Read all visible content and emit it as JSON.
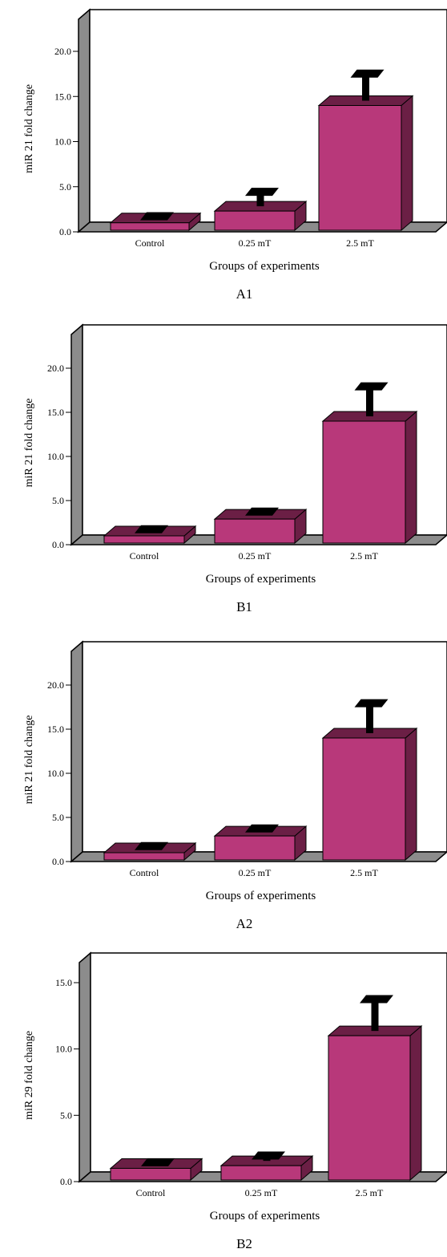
{
  "chart_data": [
    {
      "type": "bar",
      "panel_label": "A1",
      "categories": [
        "Control",
        "0.25 mT",
        "2.5 mT"
      ],
      "values": [
        1.0,
        2.3,
        14.0
      ],
      "error_plus": [
        0.2,
        1.6,
        3.0
      ],
      "xlabel": "Groups of experiments",
      "ylabel": "miR 21 fold change",
      "ylim": [
        0,
        22
      ],
      "yticks": [
        "0.0",
        "5.0",
        "10.0",
        "15.0",
        "20.0"
      ],
      "bar_color": "#b8387a",
      "bar_dark_color": "#6b1f45"
    },
    {
      "type": "bar",
      "panel_label": "B1",
      "categories": [
        "Control",
        "0.25 mT",
        "2.5 mT"
      ],
      "values": [
        1.0,
        2.9,
        14.0
      ],
      "error_plus": [
        0.2,
        0.3,
        3.4
      ],
      "xlabel": "Groups of experiments",
      "ylabel": "miR 21 fold change",
      "ylim": [
        0,
        22
      ],
      "yticks": [
        "0.0",
        "5.0",
        "10.0",
        "15.0",
        "20.0"
      ],
      "bar_color": "#b8387a",
      "bar_dark_color": "#6b1f45"
    },
    {
      "type": "bar",
      "panel_label": "A2",
      "categories": [
        "Control",
        "0.25 mT",
        "2.5 mT"
      ],
      "values": [
        1.0,
        2.9,
        14.0
      ],
      "error_plus": [
        0.2,
        0.3,
        3.4
      ],
      "xlabel": "Groups of experiments",
      "ylabel": "miR 21 fold change",
      "ylim": [
        0,
        22
      ],
      "yticks": [
        "0.0",
        "5.0",
        "10.0",
        "15.0",
        "20.0"
      ],
      "bar_color": "#b8387a",
      "bar_dark_color": "#6b1f45"
    },
    {
      "type": "bar",
      "panel_label": "B2",
      "categories": [
        "Control",
        "0.25 mT",
        "2.5 mT"
      ],
      "values": [
        1.0,
        1.2,
        11.0
      ],
      "error_plus": [
        0.1,
        0.4,
        2.4
      ],
      "xlabel": "Groups of experiments",
      "ylabel": "miR 29 fold change",
      "ylim": [
        0,
        16
      ],
      "yticks": [
        "0.0",
        "5.0",
        "10.0",
        "15.0"
      ],
      "bar_color": "#b8387a",
      "bar_dark_color": "#6b1f45"
    }
  ]
}
